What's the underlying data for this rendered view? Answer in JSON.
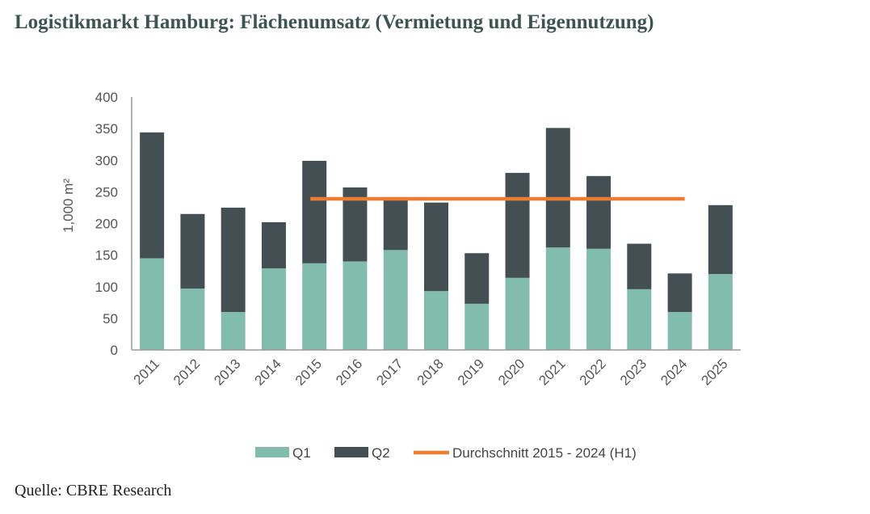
{
  "title": "Logistikmarkt Hamburg: Flächenumsatz (Vermietung und Eigennutzung)",
  "source": "Quelle: CBRE Research",
  "chart_data": {
    "type": "bar",
    "stacked": true,
    "categories": [
      "2011",
      "2012",
      "2013",
      "2014",
      "2015",
      "2016",
      "2017",
      "2018",
      "2019",
      "2020",
      "2021",
      "2022",
      "2023",
      "2024",
      "2025"
    ],
    "series": [
      {
        "name": "Q1",
        "color": "#82bcac",
        "values": [
          145,
          97,
          60,
          129,
          137,
          140,
          158,
          93,
          73,
          114,
          162,
          160,
          96,
          60,
          120
        ]
      },
      {
        "name": "Q2",
        "color": "#434f52",
        "values": [
          199,
          118,
          165,
          73,
          162,
          117,
          82,
          140,
          80,
          166,
          189,
          115,
          72,
          61,
          109
        ]
      }
    ],
    "reference_line": {
      "name": "Durchschnitt 2015 - 2024 (H1)",
      "color": "#ec7c30",
      "value": 239,
      "from": "2015",
      "to": "2024"
    },
    "ylabel": "1,000 m²",
    "ylim": [
      0,
      400
    ],
    "yticks": [
      0,
      50,
      100,
      150,
      200,
      250,
      300,
      350,
      400
    ],
    "grid": false,
    "legend": "bottom"
  }
}
